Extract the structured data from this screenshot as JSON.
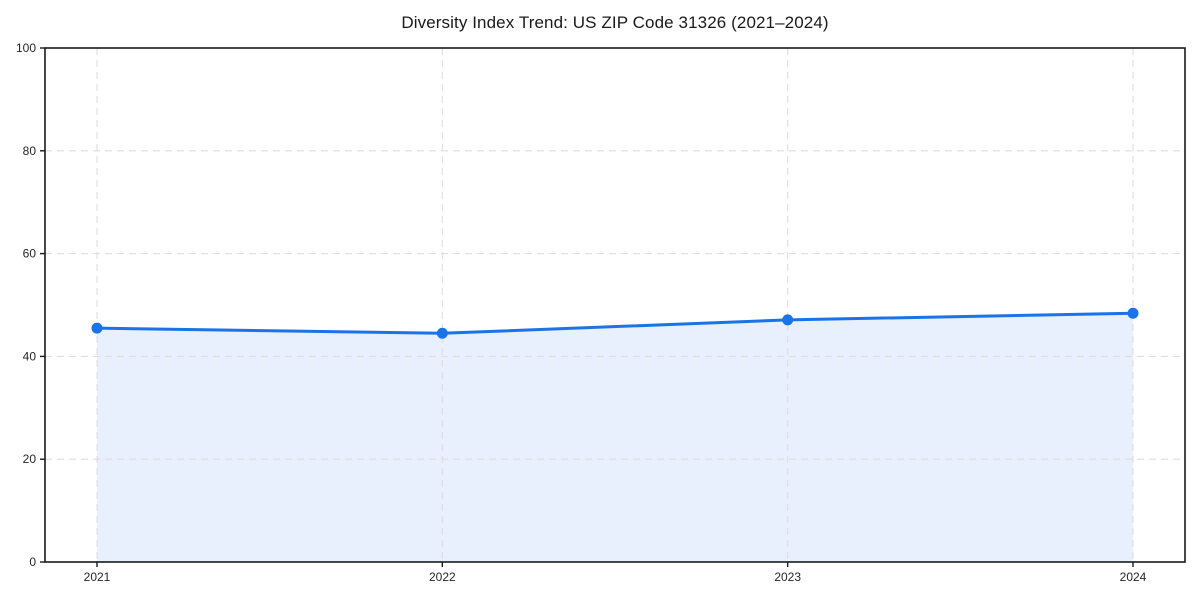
{
  "chart_data": {
    "type": "area",
    "title": "Diversity Index Trend: US ZIP Code 31326 (2021–2024)",
    "categories": [
      "2021",
      "2022",
      "2023",
      "2024"
    ],
    "series": [
      {
        "name": "Diversity Index",
        "values": [
          45.5,
          44.5,
          47.1,
          48.4
        ]
      }
    ],
    "xlabel": "",
    "ylabel": "",
    "ylim": [
      0,
      100
    ],
    "yticks": [
      0,
      20,
      40,
      60,
      80,
      100
    ],
    "grid": "dashed",
    "grid_on": true,
    "legend_position": "none",
    "marker": "circle",
    "colors": {
      "line": "#1a73e8",
      "marker": "#1a73e8",
      "area_fill": "#e8f0fd",
      "grid": "#dedede",
      "axis": "#1a1a1a",
      "tick_label": "#262626",
      "background": "#ffffff"
    }
  }
}
